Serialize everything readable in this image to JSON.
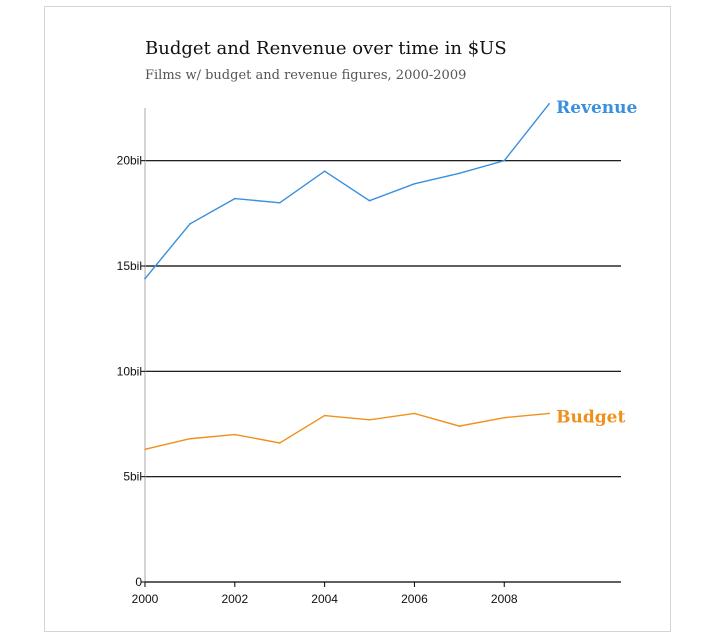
{
  "chart_data": {
    "type": "line",
    "title": "Budget and Renvenue over time in $US",
    "subtitle": "Films w/ budget and revenue figures, 2000-2009",
    "xlabel": "",
    "ylabel": "",
    "x": [
      2000,
      2001,
      2002,
      2003,
      2004,
      2005,
      2006,
      2007,
      2008,
      2009
    ],
    "xlim": [
      2000,
      2010.6
    ],
    "ylim": [
      0,
      22.5
    ],
    "x_ticks": [
      2000,
      2002,
      2004,
      2006,
      2008
    ],
    "x_tick_labels": [
      "2000",
      "2002",
      "2004",
      "2006",
      "2008"
    ],
    "y_ticks": [
      0,
      5,
      10,
      15,
      20
    ],
    "y_tick_labels": [
      "0",
      "5bil",
      "10bil",
      "15bil",
      "20bil"
    ],
    "grid": true,
    "series": [
      {
        "name": "Revenue",
        "color": "#3a8fde",
        "values": [
          14.4,
          17.0,
          18.2,
          18.0,
          19.5,
          18.1,
          18.9,
          19.4,
          20.0,
          22.7
        ]
      },
      {
        "name": "Budget",
        "color": "#f0901c",
        "values": [
          6.3,
          6.8,
          7.0,
          6.6,
          7.9,
          7.7,
          8.0,
          7.4,
          7.8,
          8.0
        ]
      }
    ]
  }
}
